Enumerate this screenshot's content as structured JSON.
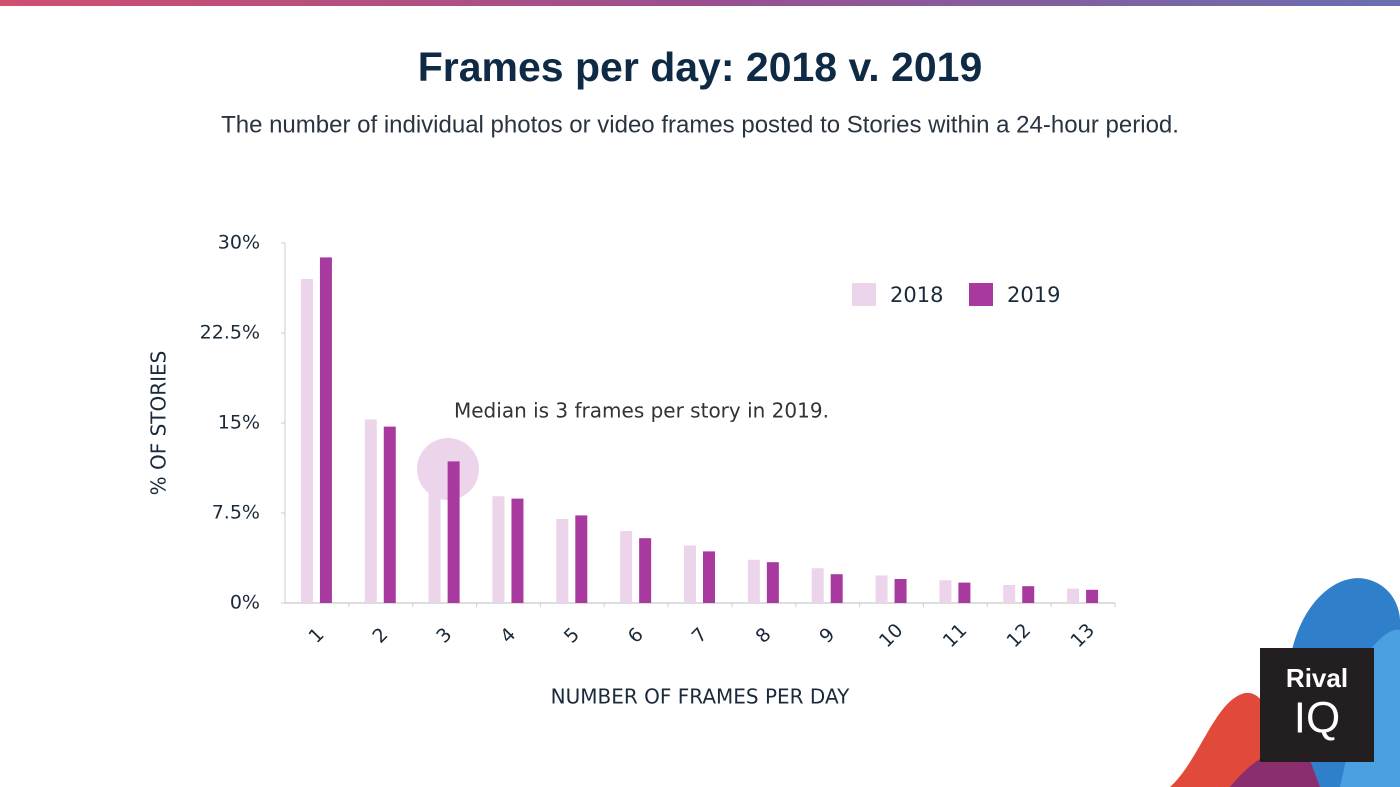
{
  "chart_data": {
    "type": "bar",
    "title": "Frames per day: 2018 v. 2019",
    "subtitle": "The number of individual photos or video frames posted to Stories within a 24-hour period.",
    "x_label": "NUMBER OF FRAMES PER DAY",
    "y_label": "% OF STORIES",
    "annotation": "Median is 3 frames per story in 2019.",
    "categories": [
      "1",
      "2",
      "3",
      "4",
      "5",
      "6",
      "7",
      "8",
      "9",
      "10",
      "11",
      "12",
      "13"
    ],
    "series": [
      {
        "name": "2018",
        "color": "#ecd5ea",
        "values": [
          27,
          15.3,
          11.2,
          8.9,
          7.0,
          6.0,
          4.8,
          3.6,
          2.9,
          2.3,
          1.9,
          1.5,
          1.2
        ]
      },
      {
        "name": "2019",
        "color": "#a8399f",
        "values": [
          28.8,
          14.7,
          11.8,
          8.7,
          7.3,
          5.4,
          4.3,
          3.4,
          2.4,
          2.0,
          1.7,
          1.4,
          1.1
        ]
      }
    ],
    "ylim": [
      0,
      30
    ],
    "yticks": [
      {
        "value": 0,
        "label": "0%"
      },
      {
        "value": 7.5,
        "label": "7.5%"
      },
      {
        "value": 15,
        "label": "15%"
      },
      {
        "value": 22.5,
        "label": "22.5%"
      },
      {
        "value": 30,
        "label": "30%"
      }
    ],
    "grid": false,
    "legend": "upper right"
  },
  "logo": [
    "Rival",
    "IQ"
  ]
}
